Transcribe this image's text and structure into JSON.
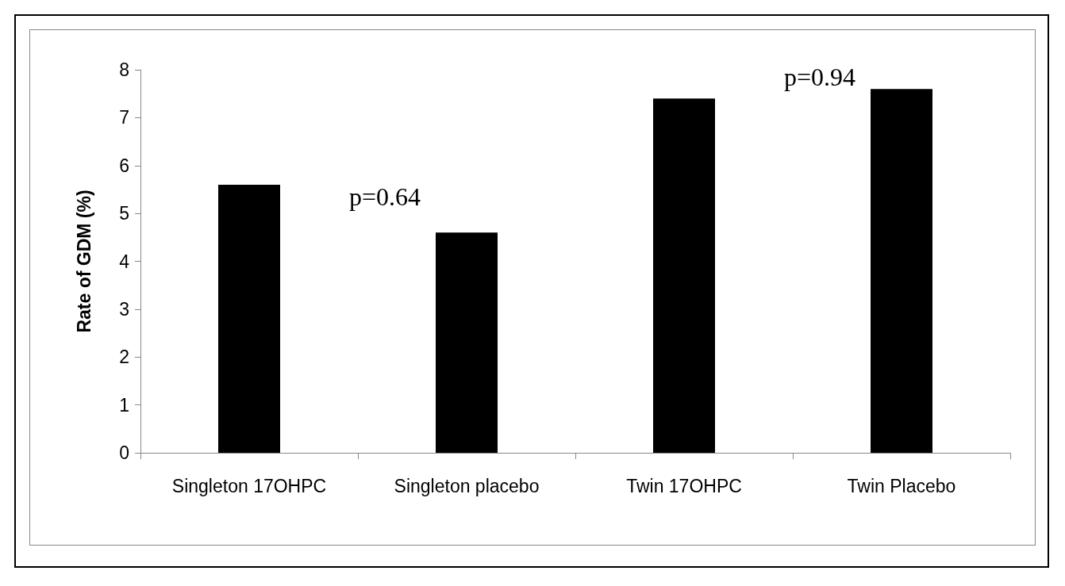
{
  "chart_data": {
    "type": "bar",
    "ylabel": "Rate of GDM (%)",
    "categories": [
      "Singleton 17OHPC",
      "Singleton placebo",
      "Twin 17OHPC",
      "Twin Placebo"
    ],
    "values": [
      5.6,
      4.6,
      7.4,
      7.6
    ],
    "color": "#000000",
    "ylim": [
      0,
      8
    ],
    "yticks": [
      0,
      1,
      2,
      3,
      4,
      5,
      6,
      7,
      8
    ],
    "grid": false,
    "annotations": [
      "p=0.64",
      "p=0.94"
    ]
  }
}
